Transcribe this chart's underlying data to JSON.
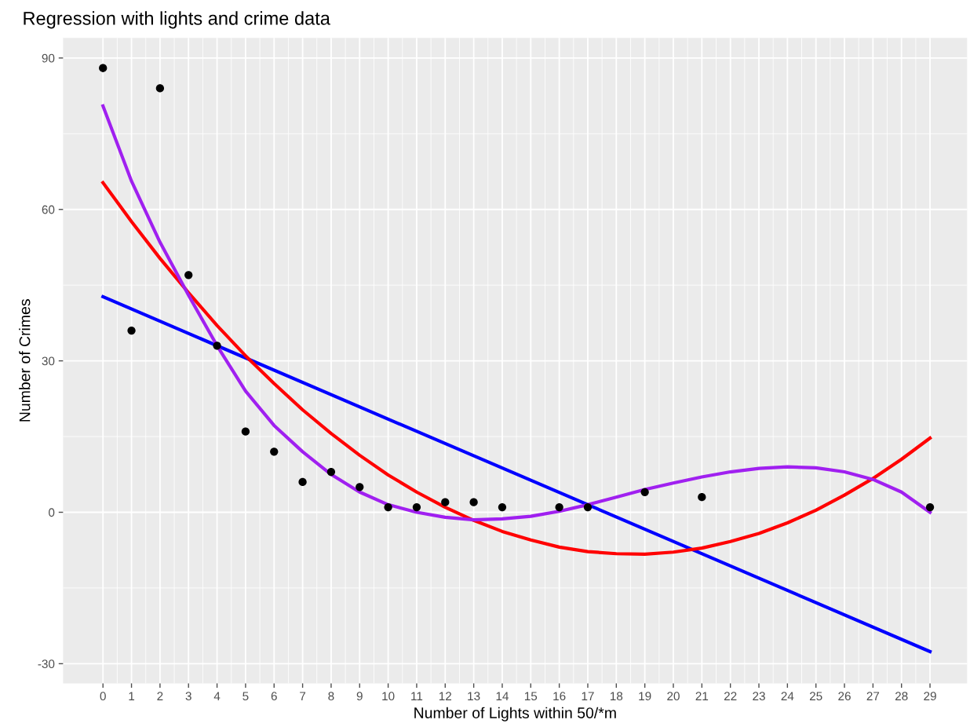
{
  "chart_data": {
    "type": "line",
    "title": "Regression with lights and crime data",
    "xlabel": "Number of Lights within 50/*m",
    "ylabel": "Number of Crimes",
    "series": [
      {
        "type": "scatter",
        "color": "#000000",
        "marker": "circle",
        "x": [
          0,
          1,
          2,
          3,
          4,
          5,
          6,
          7,
          8,
          9,
          10,
          11,
          12,
          13,
          14,
          16,
          17,
          19,
          21,
          29
        ],
        "values": [
          88,
          36,
          84,
          47,
          33,
          16,
          12,
          6,
          8,
          5,
          1,
          1,
          2,
          2,
          1,
          1,
          1,
          4,
          3,
          1
        ]
      },
      {
        "color": "#0000ff",
        "x": [
          0,
          29
        ],
        "values": [
          42.7,
          -27.6
        ]
      },
      {
        "color": "#ff0000",
        "x": [
          0,
          1,
          2,
          3,
          4,
          5,
          6,
          7,
          8,
          9,
          10,
          11,
          12,
          13,
          14,
          15,
          16,
          17,
          18,
          19,
          20,
          21,
          22,
          23,
          24,
          25,
          26,
          27,
          28,
          29
        ],
        "values": [
          65.3,
          57.6,
          50.3,
          43.5,
          37.0,
          31.0,
          25.5,
          20.3,
          15.6,
          11.3,
          7.4,
          4.0,
          1.0,
          -1.6,
          -3.8,
          -5.5,
          -6.9,
          -7.8,
          -8.2,
          -8.3,
          -7.9,
          -7.1,
          -5.8,
          -4.2,
          -2.1,
          0.4,
          3.4,
          6.7,
          10.5,
          14.7
        ]
      },
      {
        "color": "#a020f0",
        "x": [
          0,
          1,
          2,
          3,
          4,
          5,
          6,
          7,
          8,
          9,
          10,
          11,
          12,
          13,
          14,
          15,
          16,
          17,
          18,
          19,
          20,
          21,
          22,
          23,
          24,
          25,
          26,
          27,
          28,
          29
        ],
        "values": [
          80.5,
          65.6,
          53.5,
          43,
          33,
          24,
          17.2,
          12,
          7.5,
          4,
          1.5,
          0,
          -1,
          -1.5,
          -1.3,
          -0.8,
          0.2,
          1.5,
          3,
          4.5,
          5.8,
          7,
          8,
          8.7,
          9,
          8.8,
          8,
          6.5,
          4,
          0
        ]
      }
    ],
    "xlim": [
      -1.4,
      30.3
    ],
    "ylim": [
      -33.9,
      94
    ],
    "xticks": [
      0,
      1,
      2,
      3,
      4,
      5,
      6,
      7,
      8,
      9,
      10,
      11,
      12,
      13,
      14,
      15,
      16,
      17,
      18,
      19,
      20,
      21,
      22,
      23,
      24,
      25,
      26,
      27,
      28,
      29
    ],
    "yticks": [
      -30,
      0,
      30,
      60,
      90
    ],
    "grid": true,
    "legend": false
  }
}
